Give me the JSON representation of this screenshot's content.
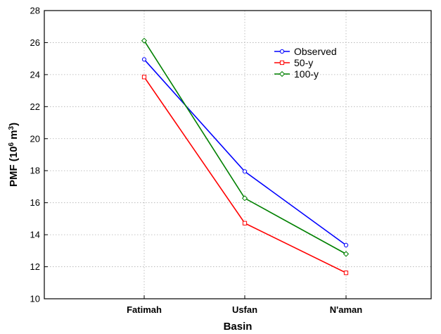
{
  "chart_data": {
    "type": "line",
    "categories": [
      "Fatimah",
      "Usfan",
      "N'aman"
    ],
    "series": [
      {
        "name": "Observed",
        "values": [
          24.95,
          17.95,
          13.35
        ],
        "color": "#0000ff",
        "marker": "circle"
      },
      {
        "name": "50-y",
        "values": [
          23.85,
          14.72,
          11.62
        ],
        "color": "#ff0000",
        "marker": "square"
      },
      {
        "name": "100-y",
        "values": [
          26.12,
          16.28,
          12.8
        ],
        "color": "#008000",
        "marker": "diamond"
      }
    ],
    "xlabel": "Basin",
    "ylabel_main": "PMF (10",
    "ylabel_sup1": "6",
    "ylabel_mid": " m",
    "ylabel_sup2": "3",
    "ylabel_end": ")",
    "ylim": [
      10,
      28
    ],
    "yticks": [
      10,
      12,
      14,
      16,
      18,
      20,
      22,
      24,
      26,
      28
    ],
    "grid": true,
    "legend_position": "top-right"
  }
}
